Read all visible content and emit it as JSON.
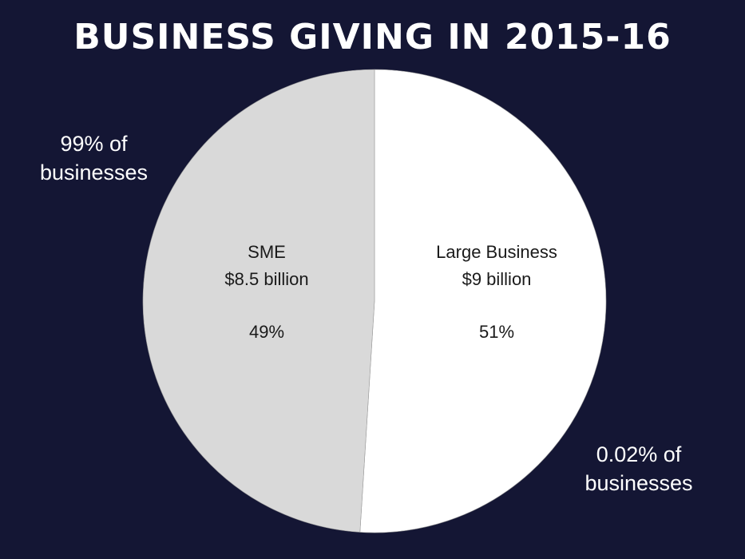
{
  "chart_data": {
    "type": "pie",
    "title": "BUSINESS GIVING IN 2015-16",
    "slices": [
      {
        "label": "SME",
        "value_text": "$8.5 billion",
        "value": 8.5,
        "percent": 49,
        "percent_label": "49%",
        "share_of_businesses": "99% of businesses",
        "color": "#d9d9d9"
      },
      {
        "label": "Large Business",
        "value_text": "$9 billion",
        "value": 9,
        "percent": 51,
        "percent_label": "51%",
        "share_of_businesses": "0.02% of businesses",
        "color": "#ffffff"
      }
    ]
  },
  "colors": {
    "background": "#141634",
    "divider": "#999999"
  }
}
